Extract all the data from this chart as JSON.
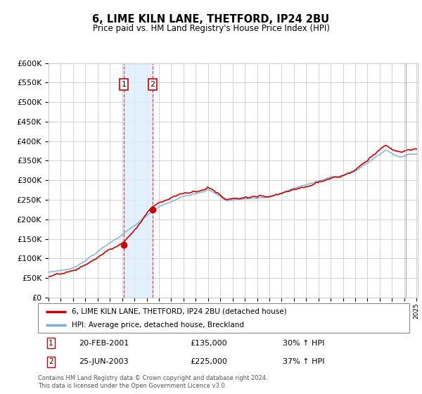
{
  "title": "6, LIME KILN LANE, THETFORD, IP24 2BU",
  "subtitle": "Price paid vs. HM Land Registry's House Price Index (HPI)",
  "ylim": [
    0,
    600000
  ],
  "ytick_values": [
    0,
    50000,
    100000,
    150000,
    200000,
    250000,
    300000,
    350000,
    400000,
    450000,
    500000,
    550000,
    600000
  ],
  "x_start_year": 1995,
  "x_end_year": 2025,
  "purchase1_date": 2001.13,
  "purchase1_price": 135000,
  "purchase2_date": 2003.48,
  "purchase2_price": 225000,
  "legend_line1": "6, LIME KILN LANE, THETFORD, IP24 2BU (detached house)",
  "legend_line2": "HPI: Average price, detached house, Breckland",
  "footer": "Contains HM Land Registry data © Crown copyright and database right 2024.\nThis data is licensed under the Open Government Licence v3.0.",
  "line_color_red": "#cc0000",
  "line_color_blue": "#7aadd4",
  "shade_color": "#ddeeff",
  "grid_color": "#cccccc",
  "background_color": "#ffffff",
  "box_color": "#cc0000",
  "row1_date": "20-FEB-2001",
  "row1_price": "£135,000",
  "row1_hpi": "30% ↑ HPI",
  "row2_date": "25-JUN-2003",
  "row2_price": "£225,000",
  "row2_hpi": "37% ↑ HPI"
}
